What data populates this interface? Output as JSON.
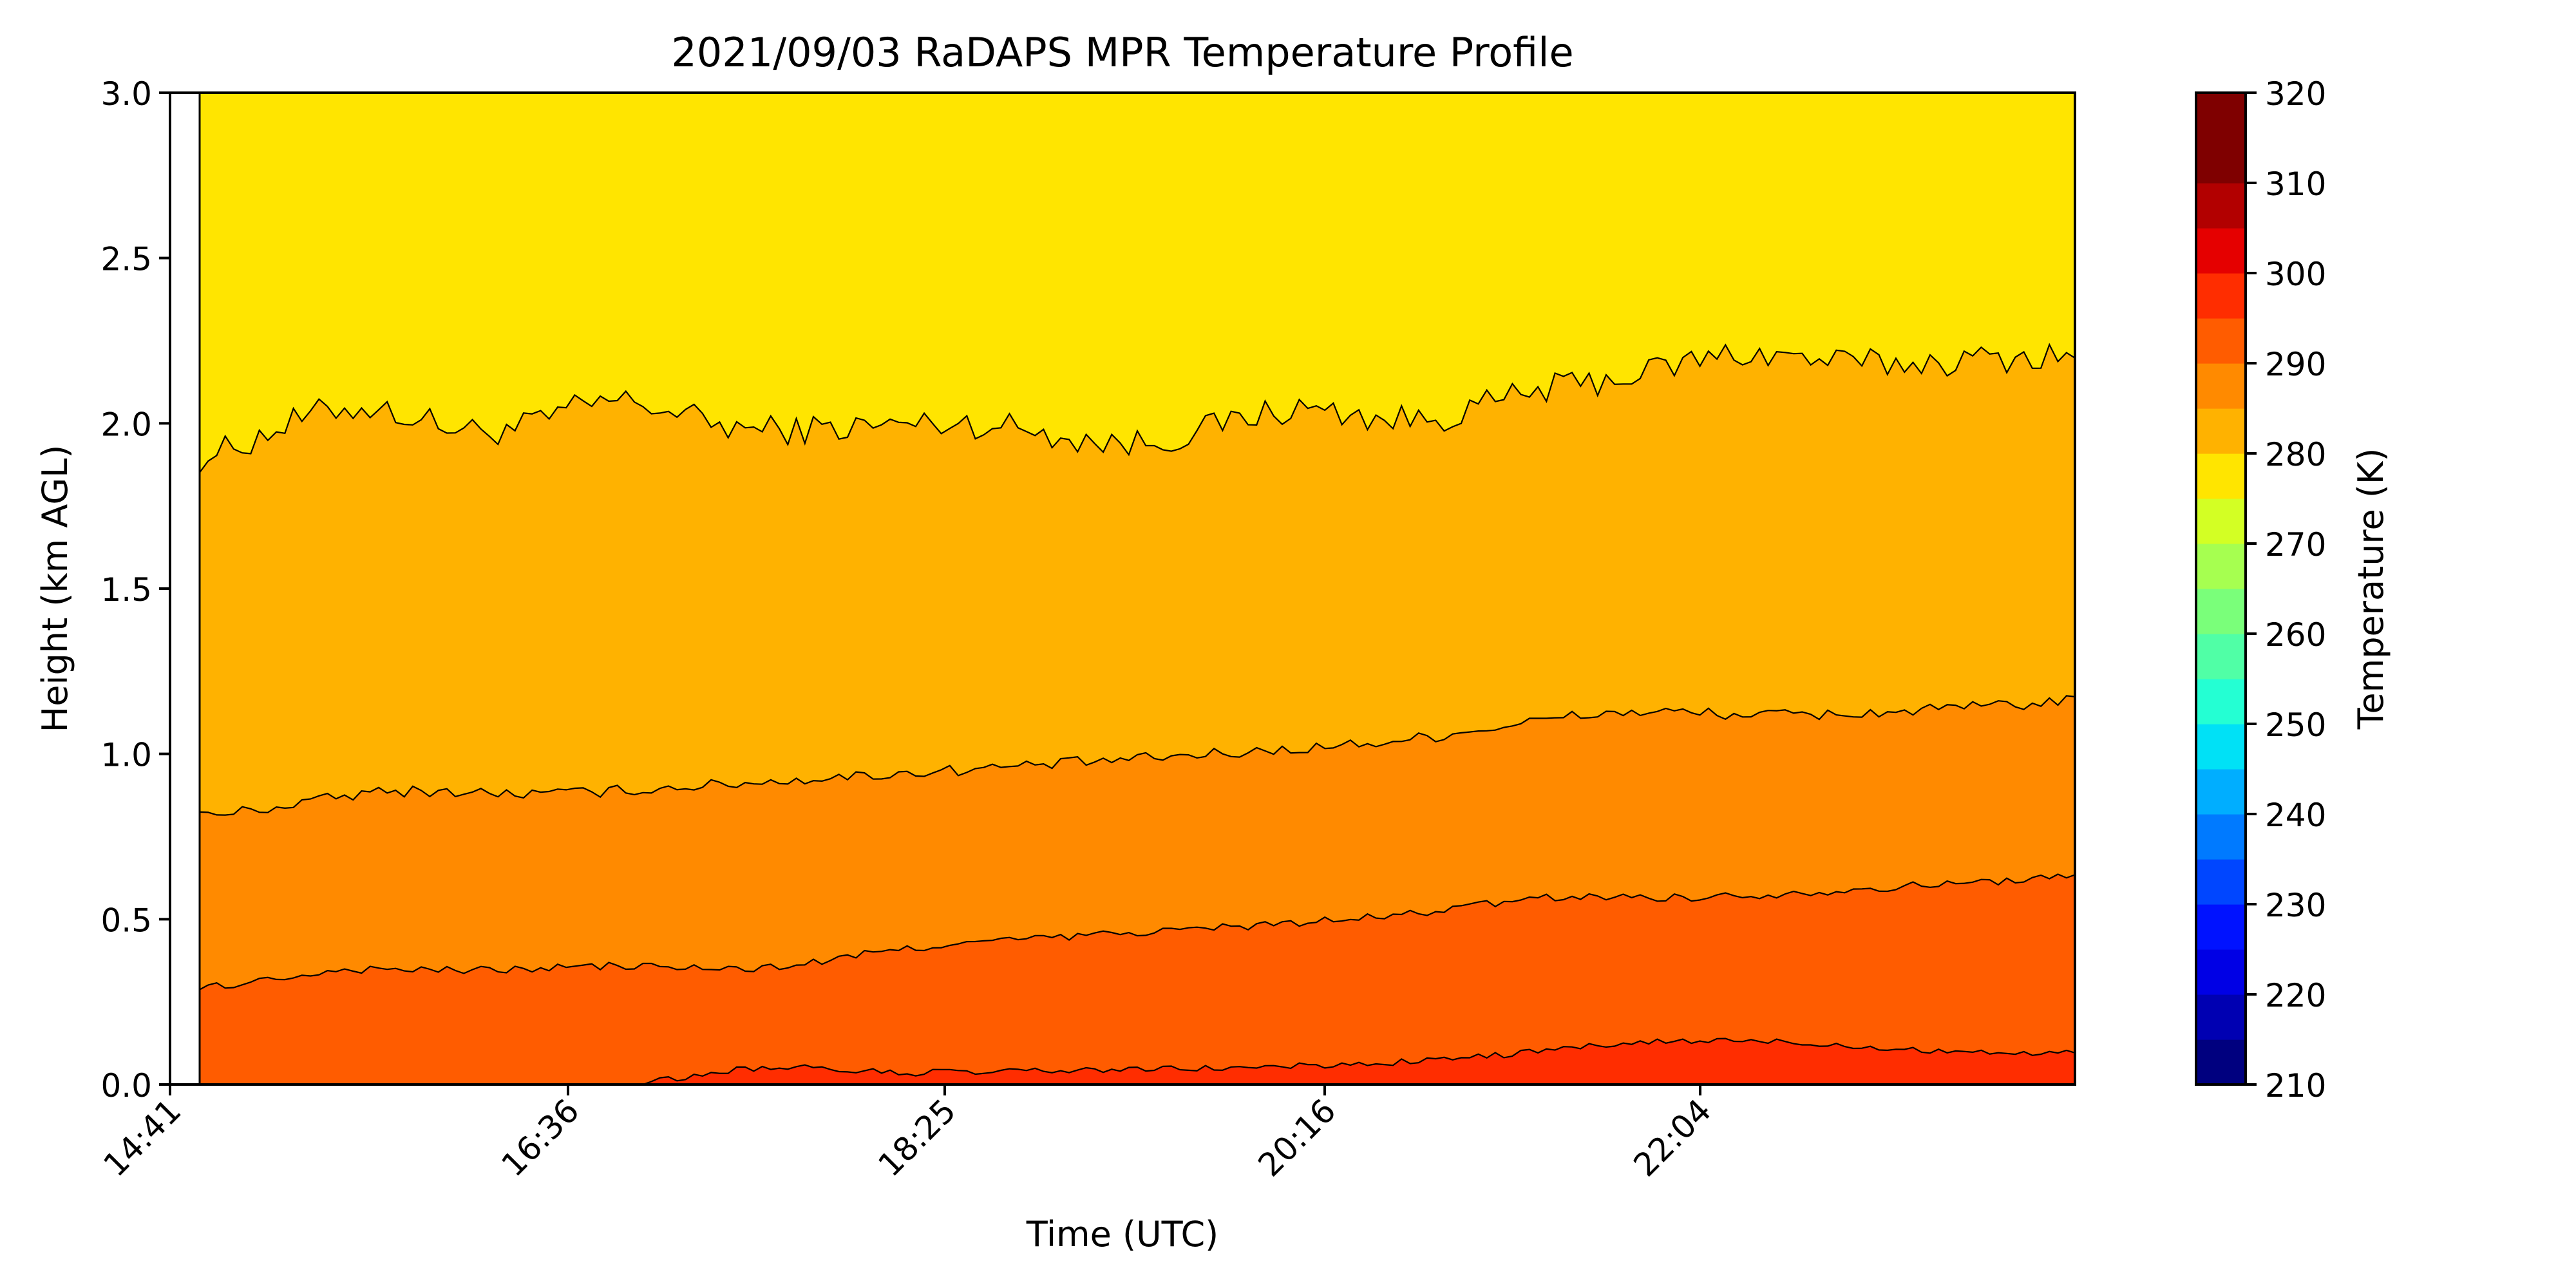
{
  "chart_data": {
    "type": "filled-contour",
    "title": "2021/09/03 RaDAPS MPR Temperature Profile",
    "xlabel": "Time (UTC)",
    "ylabel": "Height (km AGL)",
    "x_tick_labels": [
      "14:41",
      "16:36",
      "18:25",
      "20:16",
      "22:04"
    ],
    "y_ticks": [
      0.0,
      0.5,
      1.0,
      1.5,
      2.0,
      2.5,
      3.0
    ],
    "y_tick_labels": [
      "0.0",
      "0.5",
      "1.0",
      "1.5",
      "2.0",
      "2.5",
      "3.0"
    ],
    "ylim": [
      0,
      3.0
    ],
    "colorbar": {
      "label": "Temperature (K)",
      "range": [
        210,
        320
      ],
      "step": 5,
      "tick_values": [
        210,
        220,
        230,
        240,
        250,
        260,
        270,
        280,
        290,
        300,
        310,
        320
      ],
      "tick_labels": [
        "210",
        "220",
        "230",
        "240",
        "250",
        "260",
        "270",
        "280",
        "290",
        "300",
        "310",
        "320"
      ],
      "colors": [
        "#00007f",
        "#0000b2",
        "#0000e5",
        "#0012ff",
        "#0046ff",
        "#007aff",
        "#00aeff",
        "#00e1f6",
        "#24ffd3",
        "#50ffa6",
        "#7aff7a",
        "#a6ff50",
        "#d3ff24",
        "#ffe500",
        "#ffb200",
        "#ff8a00",
        "#ff5c00",
        "#ff2d00",
        "#e50000",
        "#b20000",
        "#7f0000",
        "#7f0000"
      ]
    },
    "filled_bands_K": [
      {
        "range": [
          300,
          305
        ],
        "color": "#ff2d00"
      },
      {
        "range": [
          295,
          300
        ],
        "color": "#ff5c00"
      },
      {
        "range": [
          290,
          295
        ],
        "color": "#ff8a00"
      },
      {
        "range": [
          285,
          290
        ],
        "color": "#ffb200"
      },
      {
        "range": [
          280,
          285
        ],
        "color": "#ffe500"
      }
    ],
    "contours": [
      {
        "level_K": 285,
        "height_km_start": 1.87,
        "height_km_end": 2.21
      },
      {
        "level_K": 290,
        "height_km_start": 0.81,
        "height_km_end": 1.16
      },
      {
        "level_K": 295,
        "height_km_start": 0.29,
        "height_km_end": 0.63
      },
      {
        "level_K": 300,
        "height_km_start": 0.0,
        "height_km_end": 0.09
      }
    ],
    "grid": false
  }
}
